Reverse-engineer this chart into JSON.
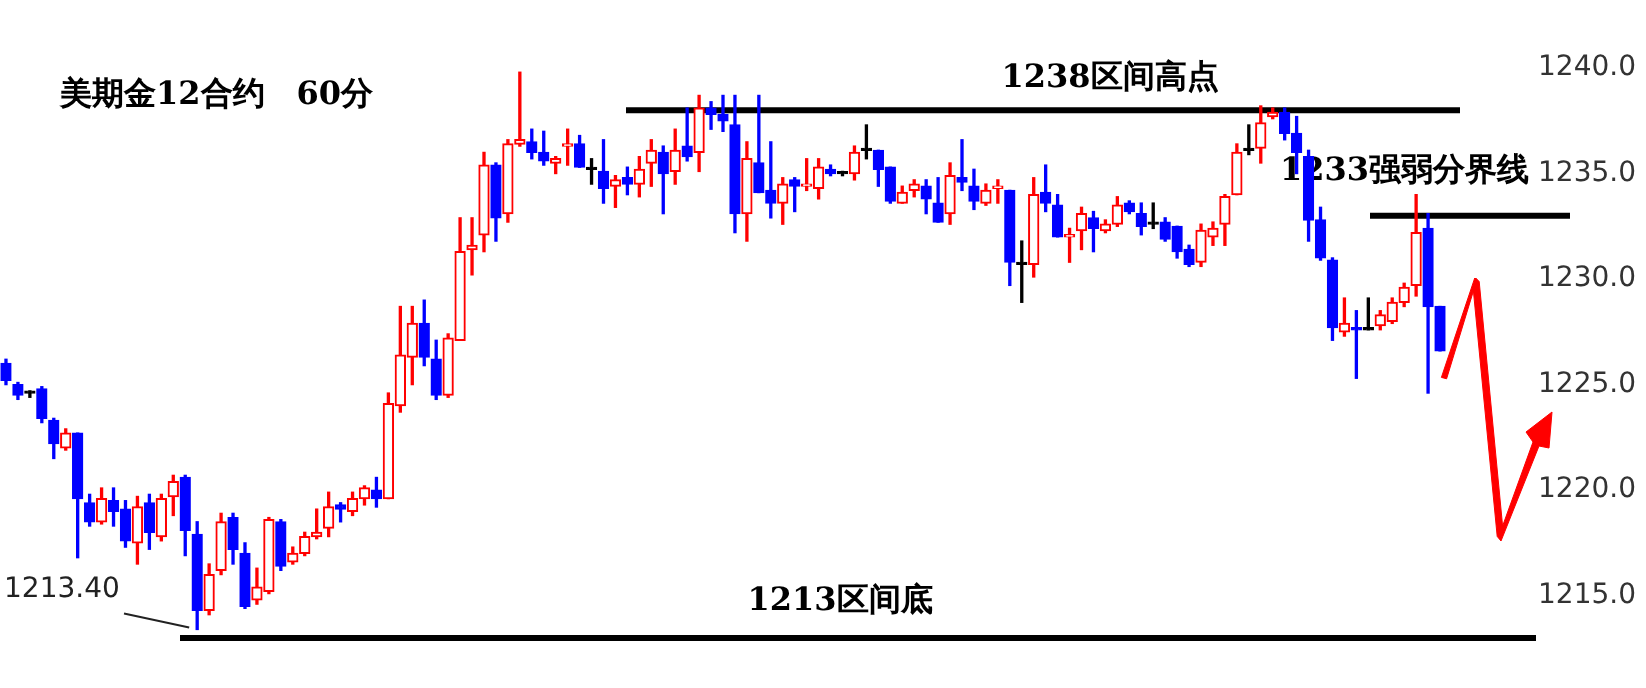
{
  "chart_data": {
    "type": "candlestick",
    "title": "美期金12合约　60分",
    "categories": [
      null,
      null,
      null,
      null,
      null,
      null,
      null,
      null,
      null,
      null,
      null,
      null,
      null,
      null,
      null,
      null,
      null,
      null,
      null,
      null,
      null,
      null,
      null,
      null,
      null,
      null,
      null,
      null,
      null,
      null,
      null,
      null,
      null,
      null,
      null,
      null,
      null,
      null,
      null,
      null,
      null,
      null,
      null,
      null,
      null,
      null,
      null,
      null,
      null,
      null,
      null,
      null,
      null,
      null,
      null,
      null,
      null,
      null,
      null,
      null,
      null,
      null,
      null,
      null,
      null,
      null,
      null,
      null,
      null,
      null,
      null,
      null,
      null,
      null,
      null,
      null,
      null,
      null,
      null,
      null,
      null,
      null,
      null,
      null,
      null,
      null,
      null,
      null,
      null,
      null,
      null,
      null,
      null,
      null,
      null,
      null,
      null,
      null,
      null,
      null,
      null,
      null,
      null,
      null,
      null,
      null,
      null,
      null,
      null,
      null,
      null,
      null,
      null,
      null,
      null,
      null,
      null,
      null,
      null,
      null,
      null
    ],
    "ohlc": [
      [
        1226,
        1226.2,
        1225,
        1225.2
      ],
      [
        1225,
        1225.1,
        1224.3,
        1224.5
      ],
      [
        1224.6,
        1224.7,
        1224.4,
        1224.6
      ],
      [
        1224.8,
        1224.9,
        1223.2,
        1223.4
      ],
      [
        1223.3,
        1223.4,
        1221.5,
        1222.2
      ],
      [
        1222,
        1222.9,
        1221.9,
        1222.7
      ],
      [
        1222.7,
        1222.7,
        1216.8,
        1219.6
      ],
      [
        1219.4,
        1219.8,
        1218.3,
        1218.5
      ],
      [
        1218.5,
        1220.1,
        1218.4,
        1219.6
      ],
      [
        1219.5,
        1220.1,
        1218.3,
        1219
      ],
      [
        1219.1,
        1219.5,
        1217.3,
        1217.6
      ],
      [
        1217.5,
        1219.7,
        1216.5,
        1219.2
      ],
      [
        1219.4,
        1219.8,
        1217.2,
        1218
      ],
      [
        1217.8,
        1219.8,
        1217.6,
        1219.6
      ],
      [
        1219.7,
        1220.7,
        1218.8,
        1220.4
      ],
      [
        1220.6,
        1220.7,
        1216.9,
        1218.1
      ],
      [
        1217.9,
        1218.5,
        1213.4,
        1214.3
      ],
      [
        1214.3,
        1216.5,
        1214.1,
        1216
      ],
      [
        1216.2,
        1218.9,
        1216,
        1218.5
      ],
      [
        1218.7,
        1218.9,
        1216.5,
        1217.2
      ],
      [
        1217,
        1217.5,
        1214.4,
        1214.5
      ],
      [
        1214.8,
        1216.3,
        1214.6,
        1215.4
      ],
      [
        1215.2,
        1218.7,
        1215.1,
        1218.6
      ],
      [
        1218.5,
        1218.6,
        1216.2,
        1216.4
      ],
      [
        1216.6,
        1217.3,
        1216.5,
        1217
      ],
      [
        1217,
        1218,
        1216.9,
        1217.8
      ],
      [
        1217.8,
        1219.1,
        1217.7,
        1218
      ],
      [
        1218.2,
        1219.9,
        1217.8,
        1219.2
      ],
      [
        1219.3,
        1219.4,
        1218.5,
        1219.1
      ],
      [
        1219,
        1219.9,
        1218.8,
        1219.6
      ],
      [
        1219.6,
        1220.2,
        1219.3,
        1220.1
      ],
      [
        1220,
        1220.6,
        1219.2,
        1219.6
      ],
      [
        1219.6,
        1224.6,
        1219.6,
        1224.1
      ],
      [
        1224,
        1228.7,
        1223.7,
        1226.4
      ],
      [
        1226.3,
        1228.7,
        1225,
        1227.9
      ],
      [
        1227.9,
        1229,
        1225.9,
        1226.3
      ],
      [
        1226.2,
        1227.1,
        1224.3,
        1224.5
      ],
      [
        1224.5,
        1227.4,
        1224.4,
        1227.2
      ],
      [
        1227.1,
        1232.9,
        1227.1,
        1231.3
      ],
      [
        1231.4,
        1232.9,
        1230.2,
        1231.6
      ],
      [
        1232.1,
        1236,
        1231.3,
        1235.4
      ],
      [
        1235.4,
        1235.5,
        1231.8,
        1232.9
      ],
      [
        1233.1,
        1236.6,
        1232.7,
        1236.4
      ],
      [
        1236.4,
        1239.8,
        1236.3,
        1236.6
      ],
      [
        1236.5,
        1237.1,
        1235.7,
        1236
      ],
      [
        1236,
        1237,
        1235.4,
        1235.6
      ],
      [
        1235.5,
        1235.8,
        1235,
        1235.7
      ],
      [
        1236.3,
        1237.1,
        1235.4,
        1236.4
      ],
      [
        1236.4,
        1236.8,
        1235.3,
        1235.3
      ],
      [
        1235.2,
        1235.7,
        1234.5,
        1235.2
      ],
      [
        1235.1,
        1236.6,
        1233.6,
        1234.3
      ],
      [
        1234.4,
        1234.9,
        1233.4,
        1234.7
      ],
      [
        1234.8,
        1235.3,
        1234,
        1234.5
      ],
      [
        1234.5,
        1235.8,
        1233.9,
        1235.2
      ],
      [
        1235.5,
        1236.6,
        1234.4,
        1236.1
      ],
      [
        1236,
        1236.3,
        1233.1,
        1235
      ],
      [
        1235.1,
        1237.1,
        1234.5,
        1236.1
      ],
      [
        1236.3,
        1238.1,
        1235.6,
        1235.8
      ],
      [
        1236,
        1238.7,
        1235.1,
        1238.1
      ],
      [
        1238.1,
        1238.4,
        1237.1,
        1237.8
      ],
      [
        1237.8,
        1238.7,
        1237,
        1237.5
      ],
      [
        1237.3,
        1238.7,
        1232.2,
        1233.1
      ],
      [
        1233.1,
        1236.5,
        1231.8,
        1235.7
      ],
      [
        1235.5,
        1238.7,
        1234.1,
        1234.1
      ],
      [
        1234.2,
        1236.5,
        1232.9,
        1233.6
      ],
      [
        1233.6,
        1234.8,
        1232.6,
        1234.5
      ],
      [
        1234.7,
        1234.8,
        1233.2,
        1234.4
      ],
      [
        1234.4,
        1235.7,
        1234.2,
        1234.5
      ],
      [
        1234.3,
        1235.7,
        1233.8,
        1235.3
      ],
      [
        1235.2,
        1235.4,
        1234.9,
        1235
      ],
      [
        1235,
        1235.1,
        1234.9,
        1235
      ],
      [
        1235,
        1236.3,
        1234.7,
        1236
      ],
      [
        1236.1,
        1237.3,
        1235.7,
        1236.1
      ],
      [
        1236.1,
        1236.1,
        1234.4,
        1235.2
      ],
      [
        1235.3,
        1235.3,
        1233.6,
        1233.7
      ],
      [
        1233.6,
        1234.4,
        1233.6,
        1234.1
      ],
      [
        1234.2,
        1234.7,
        1233.9,
        1234.5
      ],
      [
        1234.4,
        1234.7,
        1233.1,
        1233.8
      ],
      [
        1233.6,
        1234.8,
        1232.7,
        1232.7
      ],
      [
        1233.1,
        1235.5,
        1232.6,
        1234.9
      ],
      [
        1234.8,
        1236.6,
        1234.2,
        1234.6
      ],
      [
        1234.4,
        1235.2,
        1233.3,
        1233.7
      ],
      [
        1233.6,
        1234.5,
        1233.5,
        1234.2
      ],
      [
        1234.3,
        1234.7,
        1233.6,
        1234.4
      ],
      [
        1234.2,
        1234.2,
        1229.7,
        1230.8
      ],
      [
        1230.7,
        1231.8,
        1228.9,
        1230.7
      ],
      [
        1230.7,
        1234.8,
        1230.1,
        1234
      ],
      [
        1234.1,
        1235.4,
        1233.2,
        1233.6
      ],
      [
        1233.5,
        1234,
        1232,
        1232
      ],
      [
        1232,
        1232.4,
        1230.8,
        1232.1
      ],
      [
        1232.3,
        1233.4,
        1231.4,
        1233.1
      ],
      [
        1232.9,
        1233.2,
        1231.3,
        1232.4
      ],
      [
        1232.3,
        1232.8,
        1232.2,
        1232.6
      ],
      [
        1232.6,
        1233.9,
        1232.5,
        1233.5
      ],
      [
        1233.6,
        1233.7,
        1233.1,
        1233.2
      ],
      [
        1233.1,
        1233.6,
        1232.1,
        1232.5
      ],
      [
        1232.6,
        1233.6,
        1232.4,
        1232.6
      ],
      [
        1232.7,
        1232.9,
        1231.8,
        1231.9
      ],
      [
        1232.5,
        1232.5,
        1231,
        1231.3
      ],
      [
        1231.4,
        1231.6,
        1230.6,
        1230.7
      ],
      [
        1230.8,
        1232.6,
        1230.6,
        1232.3
      ],
      [
        1232,
        1232.7,
        1231.6,
        1232.4
      ],
      [
        1232.6,
        1234,
        1231.6,
        1233.9
      ],
      [
        1234,
        1236.4,
        1234,
        1236
      ],
      [
        1236.1,
        1237.3,
        1235.9,
        1236.1
      ],
      [
        1236.2,
        1238.2,
        1235.5,
        1237.4
      ],
      [
        1237.7,
        1238.1,
        1237.6,
        1237.9
      ],
      [
        1237.9,
        1238.1,
        1236.6,
        1236.9
      ],
      [
        1236.9,
        1237.7,
        1235,
        1236
      ],
      [
        1235.8,
        1236.1,
        1231.8,
        1232.8
      ],
      [
        1232.8,
        1233.4,
        1230.9,
        1231
      ],
      [
        1230.9,
        1231,
        1227.1,
        1227.7
      ],
      [
        1227.5,
        1229.1,
        1227.3,
        1227.9
      ],
      [
        1227.7,
        1228.5,
        1225.3,
        1227.6
      ],
      [
        1227.6,
        1229.1,
        1227.6,
        1227.6
      ],
      [
        1227.8,
        1228.5,
        1227.6,
        1228.3
      ],
      [
        1228,
        1229.1,
        1227.9,
        1228.9
      ],
      [
        1228.9,
        1229.8,
        1228.7,
        1229.6
      ],
      [
        1229.7,
        1234,
        1229.2,
        1232.2
      ],
      [
        1232.4,
        1233.1,
        1224.6,
        1228.7
      ],
      [
        1228.7,
        1228.7,
        1226.6,
        1226.6
      ]
    ],
    "colors": [
      "#0000ff",
      "#0000ff",
      "#000000",
      "#0000ff",
      "#0000ff",
      "#ff0000",
      "#0000ff",
      "#0000ff",
      "#ff0000",
      "#0000ff",
      "#0000ff",
      "#ff0000",
      "#0000ff",
      "#ff0000",
      "#ff0000",
      "#0000ff",
      "#0000ff",
      "#ff0000",
      "#ff0000",
      "#0000ff",
      "#0000ff",
      "#ff0000",
      "#ff0000",
      "#0000ff",
      "#ff0000",
      "#ff0000",
      "#ff0000",
      "#ff0000",
      "#0000ff",
      "#ff0000",
      "#ff0000",
      "#0000ff",
      "#ff0000",
      "#ff0000",
      "#ff0000",
      "#0000ff",
      "#0000ff",
      "#ff0000",
      "#ff0000",
      "#ff0000",
      "#ff0000",
      "#0000ff",
      "#ff0000",
      "#ff0000",
      "#0000ff",
      "#0000ff",
      "#ff0000",
      "#ff0000",
      "#0000ff",
      "#000000",
      "#0000ff",
      "#ff0000",
      "#0000ff",
      "#ff0000",
      "#ff0000",
      "#0000ff",
      "#ff0000",
      "#0000ff",
      "#ff0000",
      "#0000ff",
      "#0000ff",
      "#0000ff",
      "#ff0000",
      "#0000ff",
      "#0000ff",
      "#ff0000",
      "#0000ff",
      "#ff0000",
      "#ff0000",
      "#0000ff",
      "#000000",
      "#ff0000",
      "#000000",
      "#0000ff",
      "#0000ff",
      "#ff0000",
      "#ff0000",
      "#0000ff",
      "#0000ff",
      "#ff0000",
      "#0000ff",
      "#0000ff",
      "#ff0000",
      "#ff0000",
      "#0000ff",
      "#000000",
      "#ff0000",
      "#0000ff",
      "#0000ff",
      "#ff0000",
      "#ff0000",
      "#0000ff",
      "#ff0000",
      "#ff0000",
      "#0000ff",
      "#0000ff",
      "#000000",
      "#0000ff",
      "#0000ff",
      "#0000ff",
      "#ff0000",
      "#ff0000",
      "#ff0000",
      "#ff0000",
      "#000000",
      "#ff0000",
      "#ff0000",
      "#0000ff",
      "#0000ff",
      "#0000ff",
      "#0000ff",
      "#0000ff",
      "#ff0000",
      "#0000ff",
      "#000000",
      "#ff0000",
      "#ff0000",
      "#ff0000",
      "#ff0000",
      "#0000ff",
      "#0000ff"
    ],
    "ylim": [
      1212.9,
      1240
    ],
    "yticks": [
      {
        "value": 1215,
        "label": "1215.0"
      },
      {
        "value": 1220,
        "label": "1220.0"
      },
      {
        "value": 1225,
        "label": "1225.0"
      },
      {
        "value": 1230,
        "label": "1230.0"
      },
      {
        "value": 1235,
        "label": "1235.0"
      },
      {
        "value": 1240,
        "label": "1240.0"
      }
    ],
    "tick_labels": "y",
    "ref_lines": [
      {
        "axis": "y",
        "value": 1238,
        "label": "1238区间高点",
        "color": "#000000"
      },
      {
        "axis": "y",
        "value": 1233,
        "label": "1233强弱分界线",
        "color": "#000000"
      },
      {
        "axis": "y",
        "value": 1213,
        "label": "1213区间底",
        "color": "#000000"
      }
    ],
    "annotations": [
      "1213.40"
    ]
  }
}
